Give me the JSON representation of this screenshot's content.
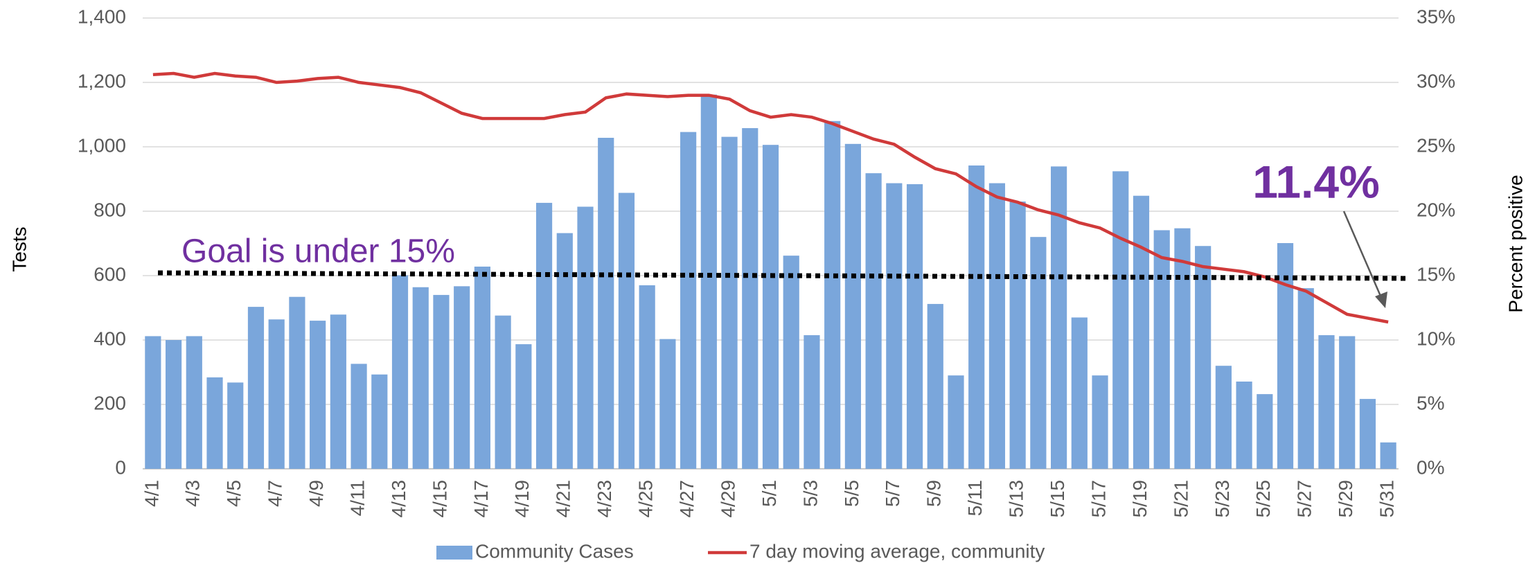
{
  "chart_data": {
    "type": "combo",
    "categories": [
      "4/1",
      null,
      "4/3",
      null,
      "4/5",
      null,
      "4/7",
      null,
      "4/9",
      null,
      "4/11",
      null,
      "4/13",
      null,
      "4/15",
      null,
      "4/17",
      null,
      "4/19",
      null,
      "4/21",
      null,
      "4/23",
      null,
      "4/25",
      null,
      "4/27",
      null,
      "4/29",
      null,
      "5/1",
      null,
      "5/3",
      null,
      "5/5",
      null,
      "5/7",
      null,
      "5/9",
      null,
      "5/11",
      null,
      "5/13",
      null,
      "5/15",
      null,
      "5/17",
      null,
      "5/19",
      null,
      "5/21",
      null,
      "5/23",
      null,
      "5/25",
      null,
      "5/27",
      null,
      "5/29",
      null,
      "5/31"
    ],
    "series": [
      {
        "name": "Community Cases",
        "type": "bar",
        "color": "#7aa6db",
        "values": [
          412,
          400,
          412,
          284,
          268,
          503,
          464,
          534,
          460,
          479,
          326,
          293,
          601,
          564,
          540,
          567,
          628,
          476,
          387,
          826,
          732,
          814,
          1028,
          857,
          570,
          403,
          1046,
          1162,
          1031,
          1058,
          1006,
          662,
          415,
          1080,
          1009,
          918,
          887,
          884,
          512,
          290,
          942,
          887,
          830,
          720,
          939,
          470,
          290,
          924,
          848,
          741,
          747,
          692,
          320,
          271,
          232,
          701,
          561,
          415,
          412,
          217,
          82
        ]
      },
      {
        "name": "7 day moving average, community",
        "type": "line",
        "axis": "y2",
        "color": "#d03a3a",
        "values": [
          30.6,
          30.7,
          30.4,
          30.7,
          30.5,
          30.4,
          30.0,
          30.1,
          30.3,
          30.4,
          30.0,
          29.8,
          29.6,
          29.2,
          28.4,
          27.6,
          27.2,
          27.2,
          27.2,
          27.2,
          27.5,
          27.7,
          28.8,
          29.1,
          29.0,
          28.9,
          29.0,
          29.0,
          28.7,
          27.8,
          27.3,
          27.5,
          27.3,
          26.8,
          26.2,
          25.6,
          25.2,
          24.2,
          23.3,
          22.9,
          21.9,
          21.1,
          20.7,
          20.1,
          19.7,
          19.1,
          18.7,
          17.9,
          17.2,
          16.4,
          16.1,
          15.7,
          15.5,
          15.3,
          14.9,
          14.3,
          13.8,
          12.9,
          12.0,
          11.7,
          11.4
        ]
      }
    ],
    "ylabel": "Tests",
    "y2label": "Percent positive",
    "ylim": [
      0,
      1400
    ],
    "yticks": [
      0,
      200,
      400,
      600,
      800,
      {
        "value": 1000,
        "label": "1,000"
      },
      {
        "value": 1200,
        "label": "1,200"
      },
      {
        "value": 1400,
        "label": "1,400"
      }
    ],
    "y2lim": [
      0,
      35
    ],
    "y2ticks": [
      {
        "value": 0,
        "label": "0%"
      },
      {
        "value": 5,
        "label": "5%"
      },
      {
        "value": 10,
        "label": "10%"
      },
      {
        "value": 15,
        "label": "15%"
      },
      {
        "value": 20,
        "label": "20%"
      },
      {
        "value": 25,
        "label": "25%"
      },
      {
        "value": 30,
        "label": "30%"
      },
      {
        "value": 35,
        "label": "35%"
      }
    ],
    "reference_line": 15,
    "annotations": [
      "Goal is under 15%",
      "11.4%"
    ],
    "grid": true
  }
}
